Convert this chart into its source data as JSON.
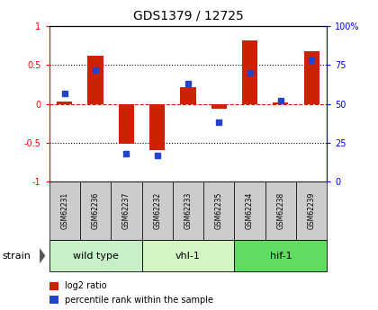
{
  "title": "GDS1379 / 12725",
  "samples": [
    "GSM62231",
    "GSM62236",
    "GSM62237",
    "GSM62232",
    "GSM62233",
    "GSM62235",
    "GSM62234",
    "GSM62238",
    "GSM62239"
  ],
  "log2_ratio": [
    0.03,
    0.62,
    -0.52,
    -0.6,
    0.22,
    -0.06,
    0.82,
    0.02,
    0.68
  ],
  "percentile_rank": [
    57,
    72,
    18,
    17,
    63,
    38,
    70,
    52,
    78
  ],
  "groups": [
    {
      "label": "wild type",
      "start": 0,
      "end": 3,
      "color": "#c8f0c8"
    },
    {
      "label": "vhl-1",
      "start": 3,
      "end": 6,
      "color": "#d4f4c4"
    },
    {
      "label": "hif-1",
      "start": 6,
      "end": 9,
      "color": "#60dd60"
    }
  ],
  "ylim_left": [
    -1,
    1
  ],
  "ylim_right": [
    0,
    100
  ],
  "yticks_left": [
    -1,
    -0.5,
    0,
    0.5,
    1
  ],
  "yticks_right": [
    0,
    25,
    50,
    75,
    100
  ],
  "ytick_labels_left": [
    "-1",
    "-0.5",
    "0",
    "0.5",
    "1"
  ],
  "ytick_labels_right": [
    "0",
    "25",
    "50",
    "75",
    "100%"
  ],
  "dotted_lines": [
    -0.5,
    0.5
  ],
  "bar_color": "#cc2200",
  "dot_color": "#2244cc",
  "legend_red_label": "log2 ratio",
  "legend_blue_label": "percentile rank within the sample",
  "strain_label": "strain",
  "sample_box_color": "#cccccc",
  "bar_width": 0.5
}
